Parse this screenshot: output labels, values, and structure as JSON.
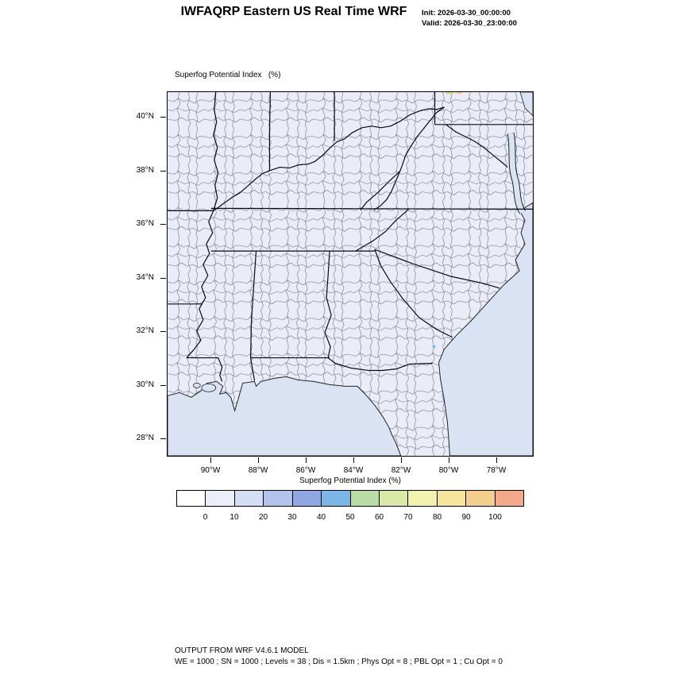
{
  "header": {
    "title": "IWFAQRP Eastern US Real Time WRF",
    "init": "Init: 2026-03-30_00:00:00",
    "valid": "Valid: 2026-03-30_23:00:00"
  },
  "map": {
    "field_label": "Superfog Potential Index   (%)",
    "lat_ticks": [
      "40°N",
      "38°N",
      "36°N",
      "34°N",
      "32°N",
      "30°N",
      "28°N"
    ],
    "lon_ticks": [
      "90°W",
      "88°W",
      "86°W",
      "84°W",
      "82°W",
      "80°W",
      "78°W"
    ],
    "land_color": "#eaedf8",
    "ocean_color": "#d9e3f4"
  },
  "colorbar": {
    "title": "Superfog Potential Index  (%)",
    "tick_labels": [
      "0",
      "10",
      "20",
      "30",
      "40",
      "50",
      "60",
      "70",
      "80",
      "90",
      "100"
    ],
    "colors": [
      "#ffffff",
      "#eceef9",
      "#d3ddf4",
      "#b3c4ec",
      "#8fa8e4",
      "#7ab6e8",
      "#b9dba4",
      "#d9e9a6",
      "#f0f2ae",
      "#f4e59a",
      "#f3cf8d",
      "#f4a988"
    ]
  },
  "footer": {
    "line1": "OUTPUT FROM WRF V4.6.1 MODEL",
    "line2": "WE = 1000 ; SN = 1000 ; Levels = 38 ; Dis = 1.5km ; Phys Opt = 8 ; PBL Opt = 1 ; Cu Opt = 0"
  },
  "chart_data": {
    "type": "heatmap",
    "title": "Superfog Potential Index (%)",
    "region": "Eastern US",
    "field_range_visible": [
      0,
      10
    ],
    "note": "Field is near-uniform in the 0-10% (palest) bin across the whole domain",
    "colorbar_ticks": [
      0,
      10,
      20,
      30,
      40,
      50,
      60,
      70,
      80,
      90,
      100
    ],
    "lat_range": [
      28,
      40
    ],
    "lon_range": [
      -90,
      -78
    ]
  }
}
